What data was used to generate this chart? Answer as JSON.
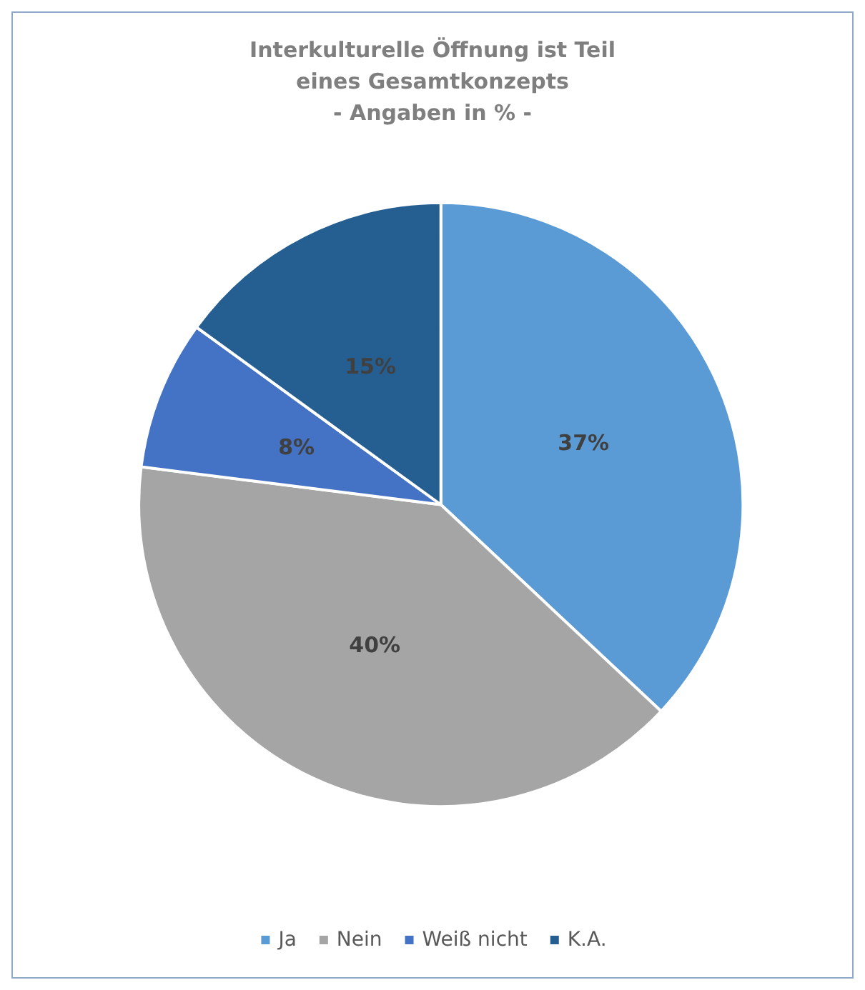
{
  "chart_data": {
    "type": "pie",
    "title": "Interkulturelle Öffnung ist Teil\neines Gesamtkonzepts\n- Angaben in % -",
    "categories": [
      "Ja",
      "Nein",
      "Weiß nicht",
      "K.A."
    ],
    "values": [
      37,
      40,
      8,
      15
    ],
    "value_labels": [
      "37%",
      "40%",
      "8%",
      "15%"
    ],
    "colors": [
      "#5b9bd5",
      "#a5a5a5",
      "#4472c4",
      "#255e91"
    ],
    "legend": "bottom"
  }
}
